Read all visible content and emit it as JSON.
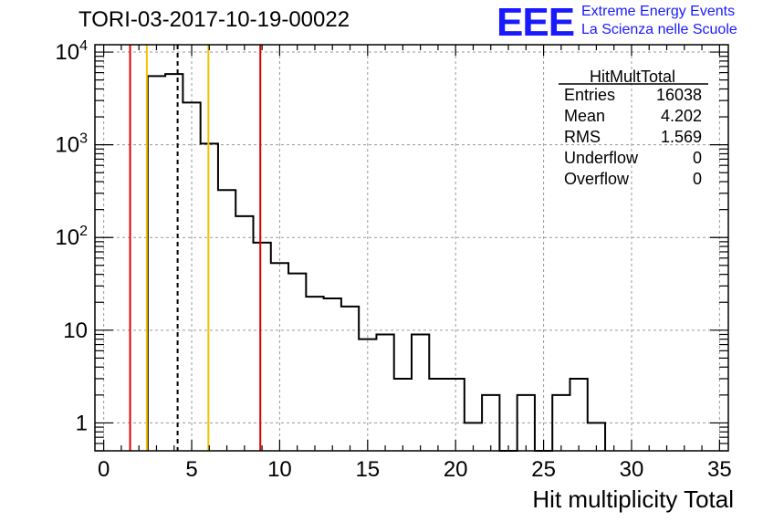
{
  "header": {
    "run_title": "TORI-03-2017-10-19-00022",
    "logo_text": "EEE",
    "logo_line1": "Extreme Energy Events",
    "logo_line2": "La Scienza nelle Scuole"
  },
  "stats": {
    "title": "HitMultTotal",
    "rows": [
      {
        "label": "Entries",
        "value": "16038"
      },
      {
        "label": "Mean",
        "value": "4.202"
      },
      {
        "label": "RMS",
        "value": "1.569"
      },
      {
        "label": "Underflow",
        "value": "0"
      },
      {
        "label": "Overflow",
        "value": "0"
      }
    ]
  },
  "colors": {
    "red_line": "#dd0000",
    "yellow_line": "#f5c000",
    "histogram": "#000000",
    "grid": "#9a9a9a"
  },
  "chart_data": {
    "type": "histogram",
    "xlabel": "Hit multiplicity Total",
    "ylabel": "",
    "xlim": [
      -0.5,
      35.5
    ],
    "ylim": [
      0.5,
      12000
    ],
    "yscale": "log",
    "grid": true,
    "x_ticks": [
      0,
      5,
      10,
      15,
      20,
      25,
      30,
      35
    ],
    "x_tick_labels": [
      "0",
      "5",
      "10",
      "15",
      "20",
      "25",
      "30",
      "35"
    ],
    "y_ticks": [
      1,
      10,
      100,
      1000,
      10000
    ],
    "y_tick_labels": [
      {
        "base": "1",
        "exp": ""
      },
      {
        "base": "10",
        "exp": ""
      },
      {
        "base": "10",
        "exp": "2"
      },
      {
        "base": "10",
        "exp": "3"
      },
      {
        "base": "10",
        "exp": "4"
      }
    ],
    "bins": [
      {
        "x0": 2.5,
        "x1": 3.5,
        "count": 5500
      },
      {
        "x0": 3.5,
        "x1": 4.5,
        "count": 5800
      },
      {
        "x0": 4.5,
        "x1": 5.5,
        "count": 2850
      },
      {
        "x0": 5.5,
        "x1": 6.5,
        "count": 1030
      },
      {
        "x0": 6.5,
        "x1": 7.5,
        "count": 325
      },
      {
        "x0": 7.5,
        "x1": 8.5,
        "count": 170
      },
      {
        "x0": 8.5,
        "x1": 9.5,
        "count": 88
      },
      {
        "x0": 9.5,
        "x1": 10.5,
        "count": 53
      },
      {
        "x0": 10.5,
        "x1": 11.5,
        "count": 41
      },
      {
        "x0": 11.5,
        "x1": 12.5,
        "count": 23
      },
      {
        "x0": 12.5,
        "x1": 13.5,
        "count": 22
      },
      {
        "x0": 13.5,
        "x1": 14.5,
        "count": 18
      },
      {
        "x0": 14.5,
        "x1": 15.5,
        "count": 8
      },
      {
        "x0": 15.5,
        "x1": 16.5,
        "count": 9
      },
      {
        "x0": 16.5,
        "x1": 17.5,
        "count": 3
      },
      {
        "x0": 17.5,
        "x1": 18.5,
        "count": 9
      },
      {
        "x0": 18.5,
        "x1": 19.5,
        "count": 3
      },
      {
        "x0": 19.5,
        "x1": 20.5,
        "count": 3
      },
      {
        "x0": 20.5,
        "x1": 21.5,
        "count": 1
      },
      {
        "x0": 21.5,
        "x1": 22.5,
        "count": 2
      },
      {
        "x0": 22.5,
        "x1": 23.5,
        "count": 0
      },
      {
        "x0": 23.5,
        "x1": 24.5,
        "count": 2
      },
      {
        "x0": 24.5,
        "x1": 25.5,
        "count": 0
      },
      {
        "x0": 25.5,
        "x1": 26.5,
        "count": 2
      },
      {
        "x0": 26.5,
        "x1": 27.5,
        "count": 3
      },
      {
        "x0": 27.5,
        "x1": 28.5,
        "count": 1
      }
    ],
    "vertical_lines": [
      {
        "name": "red-line-low",
        "x": 1.5,
        "color": "red",
        "style": "solid"
      },
      {
        "name": "yellow-line-low",
        "x": 2.45,
        "color": "yellow",
        "style": "solid"
      },
      {
        "name": "mean-line",
        "x": 4.2,
        "color": "black",
        "style": "dashed"
      },
      {
        "name": "yellow-line-high",
        "x": 5.95,
        "color": "yellow",
        "style": "solid"
      },
      {
        "name": "red-line-high",
        "x": 8.9,
        "color": "red",
        "style": "solid"
      }
    ]
  }
}
